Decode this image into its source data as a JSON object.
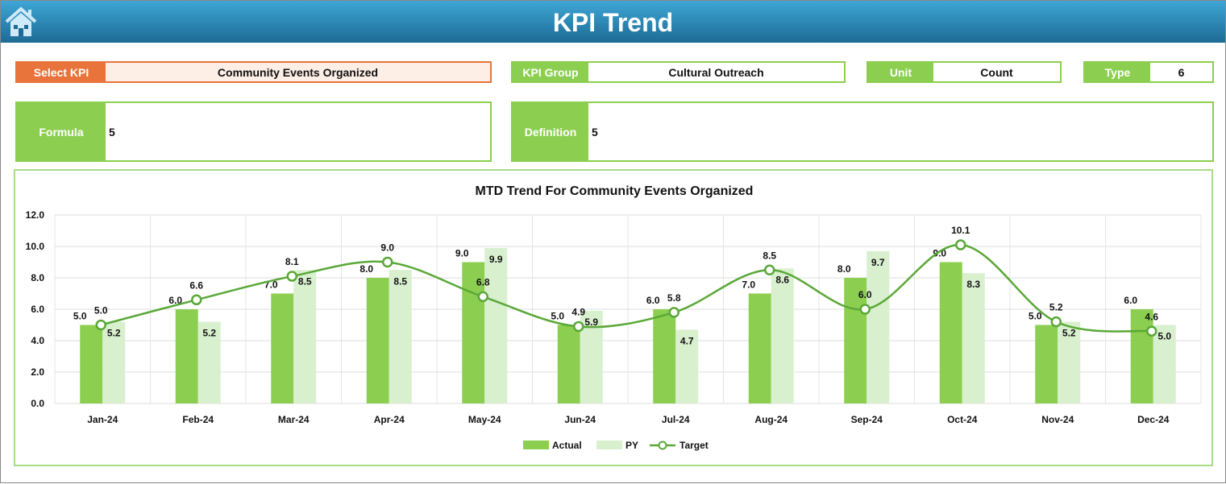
{
  "header": {
    "title": "KPI Trend"
  },
  "fields": {
    "select_kpi_label": "Select KPI",
    "select_kpi_value": "Community Events Organized",
    "kpi_group_label": "KPI Group",
    "kpi_group_value": "Cultural Outreach",
    "unit_label": "Unit",
    "unit_value": "Count",
    "type_label": "Type",
    "type_value": "6",
    "formula_label": "Formula",
    "formula_value": "5",
    "definition_label": "Definition",
    "definition_value": "5"
  },
  "colors": {
    "actual": "#8ccf50",
    "py": "#d9f0cf",
    "target": "#5aa838",
    "orange": "#e8743b"
  },
  "chart_data": {
    "type": "bar",
    "title": "MTD Trend For Community Events Organized",
    "categories": [
      "Jan-24",
      "Feb-24",
      "Mar-24",
      "Apr-24",
      "May-24",
      "Jun-24",
      "Jul-24",
      "Aug-24",
      "Sep-24",
      "Oct-24",
      "Nov-24",
      "Dec-24"
    ],
    "series": [
      {
        "name": "Actual",
        "type": "bar",
        "values": [
          5.0,
          6.0,
          7.0,
          8.0,
          9.0,
          5.0,
          6.0,
          7.0,
          8.0,
          9.0,
          5.0,
          6.0
        ]
      },
      {
        "name": "PY",
        "type": "bar",
        "values": [
          5.2,
          5.2,
          8.5,
          8.5,
          9.9,
          5.9,
          4.7,
          8.6,
          9.7,
          8.3,
          5.2,
          5.0
        ]
      },
      {
        "name": "Target",
        "type": "line",
        "values": [
          5.0,
          6.6,
          8.1,
          9.0,
          6.8,
          4.9,
          5.8,
          8.5,
          6.0,
          10.1,
          5.2,
          4.6
        ]
      }
    ],
    "ylim": [
      0,
      12
    ],
    "yticks": [
      "0.0",
      "2.0",
      "4.0",
      "6.0",
      "8.0",
      "10.0",
      "12.0"
    ],
    "grid": true,
    "legend": "bottom"
  }
}
